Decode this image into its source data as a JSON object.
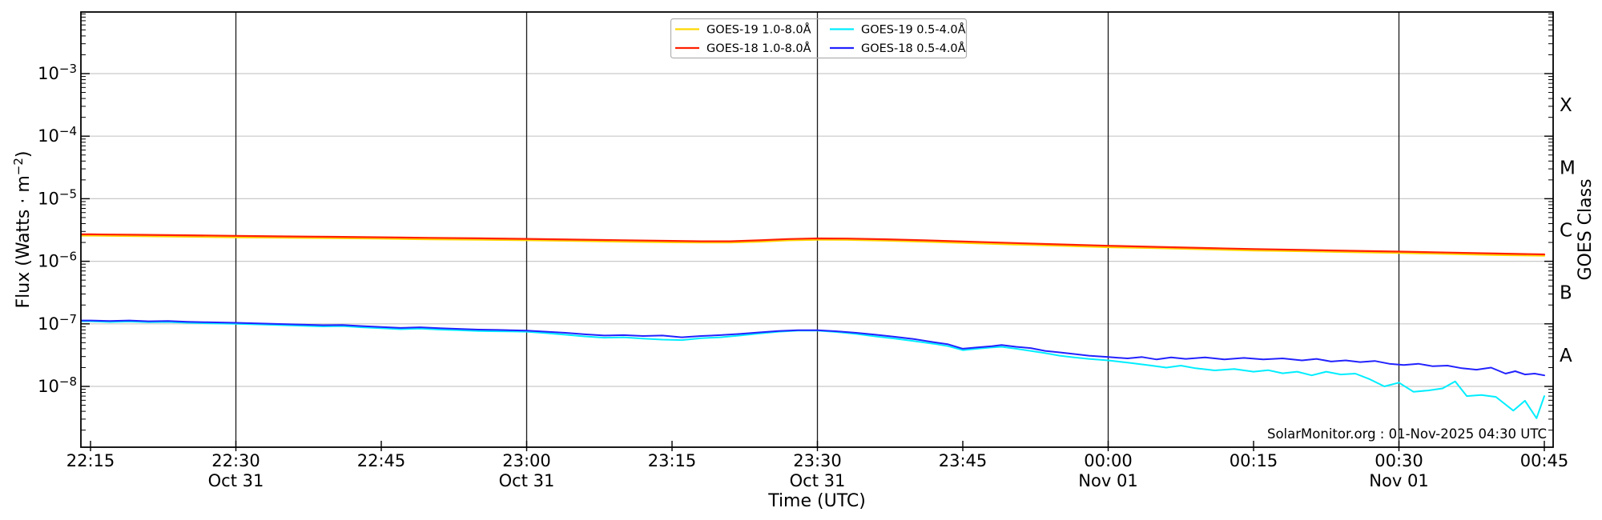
{
  "chart_data": {
    "type": "line",
    "title": "",
    "xlabel": "Time (UTC)",
    "ylabel_parts": {
      "pre": "Flux (Watts · m",
      "sup": "−2",
      "post": ")"
    },
    "y2label": "GOES Class",
    "x_axis": {
      "start_label": "22:15",
      "end_label": "00:45",
      "tick_interval_minutes": 15,
      "ticks": [
        {
          "m": 0,
          "label": "22:15",
          "date": null
        },
        {
          "m": 15,
          "label": "22:30",
          "date": "Oct 31"
        },
        {
          "m": 30,
          "label": "22:45",
          "date": null
        },
        {
          "m": 45,
          "label": "23:00",
          "date": "Oct 31"
        },
        {
          "m": 60,
          "label": "23:15",
          "date": null
        },
        {
          "m": 75,
          "label": "23:30",
          "date": "Oct 31"
        },
        {
          "m": 90,
          "label": "23:45",
          "date": null
        },
        {
          "m": 105,
          "label": "00:00",
          "date": "Nov 01"
        },
        {
          "m": 120,
          "label": "00:15",
          "date": null
        },
        {
          "m": 135,
          "label": "00:30",
          "date": "Nov 01"
        },
        {
          "m": 150,
          "label": "00:45",
          "date": null
        }
      ]
    },
    "y_axis": {
      "scale": "log",
      "range_exponents": [
        -2,
        -9
      ],
      "ticks": [
        {
          "base": "10",
          "sup": "−3",
          "exp": -3
        },
        {
          "base": "10",
          "sup": "−4",
          "exp": -4
        },
        {
          "base": "10",
          "sup": "−5",
          "exp": -5
        },
        {
          "base": "10",
          "sup": "−6",
          "exp": -6
        },
        {
          "base": "10",
          "sup": "−7",
          "exp": -7
        },
        {
          "base": "10",
          "sup": "−8",
          "exp": -8
        }
      ]
    },
    "goes_classes": [
      {
        "label": "X",
        "mid_exp": -3.5
      },
      {
        "label": "M",
        "mid_exp": -4.5
      },
      {
        "label": "C",
        "mid_exp": -5.5
      },
      {
        "label": "B",
        "mid_exp": -6.5
      },
      {
        "label": "A",
        "mid_exp": -7.5
      }
    ],
    "grid": {
      "h_color": "#c9c9c9",
      "v_color": "#1b1b1b",
      "axis_color": "#000000"
    },
    "legend": {
      "position": "top-center",
      "border_color": "#b0b0b0",
      "columns": 2
    },
    "attribution": "SolarMonitor.org : 01-Nov-2025 04:30 UTC",
    "series": [
      {
        "name": "GOES-19 1.0-8.0Å",
        "color": "#ffd700",
        "width": 2.2,
        "points": [
          [
            0,
            2.57e-06
          ],
          [
            5,
            2.52e-06
          ],
          [
            10,
            2.47e-06
          ],
          [
            15,
            2.42e-06
          ],
          [
            20,
            2.38e-06
          ],
          [
            25,
            2.34e-06
          ],
          [
            30,
            2.3e-06
          ],
          [
            35,
            2.25e-06
          ],
          [
            40,
            2.21e-06
          ],
          [
            45,
            2.17e-06
          ],
          [
            50,
            2.11e-06
          ],
          [
            55,
            2.06e-06
          ],
          [
            60,
            2.01e-06
          ],
          [
            63,
            1.99e-06
          ],
          [
            66,
            1.99e-06
          ],
          [
            69,
            2.05e-06
          ],
          [
            72,
            2.16e-06
          ],
          [
            75,
            2.21e-06
          ],
          [
            78,
            2.2e-06
          ],
          [
            82,
            2.14e-06
          ],
          [
            86,
            2.05e-06
          ],
          [
            90,
            1.97e-06
          ],
          [
            95,
            1.86e-06
          ],
          [
            100,
            1.77e-06
          ],
          [
            105,
            1.68e-06
          ],
          [
            110,
            1.62e-06
          ],
          [
            115,
            1.55e-06
          ],
          [
            120,
            1.49e-06
          ],
          [
            125,
            1.45e-06
          ],
          [
            130,
            1.4e-06
          ],
          [
            135,
            1.36e-06
          ],
          [
            140,
            1.31e-06
          ],
          [
            145,
            1.26e-06
          ],
          [
            150,
            1.23e-06
          ]
        ]
      },
      {
        "name": "GOES-18 1.0-8.0Å",
        "color": "#ff2000",
        "width": 2.2,
        "points": [
          [
            0,
            2.7e-06
          ],
          [
            5,
            2.65e-06
          ],
          [
            10,
            2.6e-06
          ],
          [
            15,
            2.55e-06
          ],
          [
            20,
            2.5e-06
          ],
          [
            25,
            2.46e-06
          ],
          [
            30,
            2.42e-06
          ],
          [
            35,
            2.37e-06
          ],
          [
            40,
            2.33e-06
          ],
          [
            45,
            2.28e-06
          ],
          [
            50,
            2.22e-06
          ],
          [
            55,
            2.17e-06
          ],
          [
            60,
            2.12e-06
          ],
          [
            63,
            2.09e-06
          ],
          [
            66,
            2.09e-06
          ],
          [
            69,
            2.16e-06
          ],
          [
            72,
            2.27e-06
          ],
          [
            75,
            2.32e-06
          ],
          [
            78,
            2.31e-06
          ],
          [
            82,
            2.25e-06
          ],
          [
            86,
            2.16e-06
          ],
          [
            90,
            2.07e-06
          ],
          [
            95,
            1.96e-06
          ],
          [
            100,
            1.86e-06
          ],
          [
            105,
            1.77e-06
          ],
          [
            110,
            1.7e-06
          ],
          [
            115,
            1.63e-06
          ],
          [
            120,
            1.57e-06
          ],
          [
            125,
            1.52e-06
          ],
          [
            130,
            1.47e-06
          ],
          [
            135,
            1.43e-06
          ],
          [
            140,
            1.38e-06
          ],
          [
            145,
            1.33e-06
          ],
          [
            150,
            1.29e-06
          ]
        ]
      },
      {
        "name": "GOES-19 0.5-4.0Å",
        "color": "#00eeff",
        "width": 2.0,
        "points": [
          [
            0,
            1.1e-07
          ],
          [
            2,
            1.07e-07
          ],
          [
            4,
            1.09e-07
          ],
          [
            6,
            1.06e-07
          ],
          [
            8,
            1.07e-07
          ],
          [
            10,
            1.04e-07
          ],
          [
            12,
            1.02e-07
          ],
          [
            15,
            1e-07
          ],
          [
            18,
            9.7e-08
          ],
          [
            21,
            9.4e-08
          ],
          [
            24,
            9.1e-08
          ],
          [
            26,
            9.2e-08
          ],
          [
            28,
            8.8e-08
          ],
          [
            30,
            8.5e-08
          ],
          [
            32,
            8.2e-08
          ],
          [
            34,
            8.4e-08
          ],
          [
            36,
            8.1e-08
          ],
          [
            38,
            7.9e-08
          ],
          [
            40,
            7.7e-08
          ],
          [
            42,
            7.6e-08
          ],
          [
            45,
            7.5e-08
          ],
          [
            47,
            7.1e-08
          ],
          [
            49,
            6.7e-08
          ],
          [
            51,
            6.3e-08
          ],
          [
            53,
            6e-08
          ],
          [
            55,
            6.1e-08
          ],
          [
            57,
            5.8e-08
          ],
          [
            59,
            5.6e-08
          ],
          [
            61,
            5.5e-08
          ],
          [
            63,
            5.9e-08
          ],
          [
            65,
            6.1e-08
          ],
          [
            67,
            6.5e-08
          ],
          [
            69,
            7e-08
          ],
          [
            71,
            7.5e-08
          ],
          [
            73,
            7.8e-08
          ],
          [
            75,
            7.8e-08
          ],
          [
            77,
            7.4e-08
          ],
          [
            79,
            6.9e-08
          ],
          [
            81,
            6.3e-08
          ],
          [
            83,
            5.8e-08
          ],
          [
            85,
            5.3e-08
          ],
          [
            87,
            4.8e-08
          ],
          [
            88.5,
            4.4e-08
          ],
          [
            90,
            3.8e-08
          ],
          [
            91.5,
            4e-08
          ],
          [
            93,
            4.2e-08
          ],
          [
            94,
            4.3e-08
          ],
          [
            95.5,
            4e-08
          ],
          [
            97,
            3.7e-08
          ],
          [
            98.5,
            3.4e-08
          ],
          [
            100,
            3.1e-08
          ],
          [
            101.5,
            2.9e-08
          ],
          [
            103,
            2.75e-08
          ],
          [
            105,
            2.6e-08
          ],
          [
            107,
            2.4e-08
          ],
          [
            109,
            2.2e-08
          ],
          [
            111,
            2e-08
          ],
          [
            112.5,
            2.15e-08
          ],
          [
            114,
            1.95e-08
          ],
          [
            116,
            1.8e-08
          ],
          [
            118,
            1.9e-08
          ],
          [
            120,
            1.72e-08
          ],
          [
            121.5,
            1.82e-08
          ],
          [
            123,
            1.62e-08
          ],
          [
            124.5,
            1.72e-08
          ],
          [
            126,
            1.5e-08
          ],
          [
            127.5,
            1.72e-08
          ],
          [
            129,
            1.55e-08
          ],
          [
            130.5,
            1.6e-08
          ],
          [
            132,
            1.3e-08
          ],
          [
            133.5,
            1e-08
          ],
          [
            135,
            1.15e-08
          ],
          [
            136.5,
            8.2e-09
          ],
          [
            138,
            8.6e-09
          ],
          [
            139.5,
            9.3e-09
          ],
          [
            140.8,
            1.2e-08
          ],
          [
            142,
            7e-09
          ],
          [
            143.5,
            7.3e-09
          ],
          [
            145,
            6.8e-09
          ],
          [
            146.8,
            4.1e-09
          ],
          [
            148,
            5.9e-09
          ],
          [
            149.2,
            3.1e-09
          ],
          [
            150,
            7e-09
          ]
        ]
      },
      {
        "name": "GOES-18 0.5-4.0Å",
        "color": "#2222ff",
        "width": 2.0,
        "points": [
          [
            0,
            1.13e-07
          ],
          [
            2,
            1.11e-07
          ],
          [
            4,
            1.13e-07
          ],
          [
            6,
            1.1e-07
          ],
          [
            8,
            1.11e-07
          ],
          [
            10,
            1.08e-07
          ],
          [
            12,
            1.06e-07
          ],
          [
            15,
            1.04e-07
          ],
          [
            18,
            1.01e-07
          ],
          [
            21,
            9.8e-08
          ],
          [
            24,
            9.5e-08
          ],
          [
            26,
            9.6e-08
          ],
          [
            28,
            9.2e-08
          ],
          [
            30,
            8.9e-08
          ],
          [
            32,
            8.6e-08
          ],
          [
            34,
            8.8e-08
          ],
          [
            36,
            8.5e-08
          ],
          [
            38,
            8.3e-08
          ],
          [
            40,
            8.1e-08
          ],
          [
            42,
            8e-08
          ],
          [
            45,
            7.8e-08
          ],
          [
            47,
            7.5e-08
          ],
          [
            49,
            7.2e-08
          ],
          [
            51,
            6.8e-08
          ],
          [
            53,
            6.5e-08
          ],
          [
            55,
            6.6e-08
          ],
          [
            57,
            6.4e-08
          ],
          [
            59,
            6.5e-08
          ],
          [
            61,
            6.1e-08
          ],
          [
            63,
            6.4e-08
          ],
          [
            65,
            6.6e-08
          ],
          [
            67,
            6.9e-08
          ],
          [
            69,
            7.3e-08
          ],
          [
            71,
            7.7e-08
          ],
          [
            73,
            7.9e-08
          ],
          [
            75,
            7.9e-08
          ],
          [
            77,
            7.6e-08
          ],
          [
            79,
            7.2e-08
          ],
          [
            81,
            6.7e-08
          ],
          [
            83,
            6.2e-08
          ],
          [
            85,
            5.7e-08
          ],
          [
            87,
            5.1e-08
          ],
          [
            88.5,
            4.7e-08
          ],
          [
            90,
            4e-08
          ],
          [
            91.5,
            4.2e-08
          ],
          [
            93,
            4.4e-08
          ],
          [
            94,
            4.6e-08
          ],
          [
            95.5,
            4.3e-08
          ],
          [
            97,
            4.1e-08
          ],
          [
            98.5,
            3.7e-08
          ],
          [
            100,
            3.5e-08
          ],
          [
            101.5,
            3.3e-08
          ],
          [
            103,
            3.1e-08
          ],
          [
            105,
            2.95e-08
          ],
          [
            107,
            2.8e-08
          ],
          [
            108.5,
            2.95e-08
          ],
          [
            110,
            2.7e-08
          ],
          [
            111.5,
            2.9e-08
          ],
          [
            113,
            2.75e-08
          ],
          [
            115,
            2.9e-08
          ],
          [
            117,
            2.7e-08
          ],
          [
            119,
            2.85e-08
          ],
          [
            121,
            2.7e-08
          ],
          [
            123,
            2.8e-08
          ],
          [
            125,
            2.6e-08
          ],
          [
            126.5,
            2.75e-08
          ],
          [
            128,
            2.5e-08
          ],
          [
            129.5,
            2.6e-08
          ],
          [
            131,
            2.45e-08
          ],
          [
            132.5,
            2.55e-08
          ],
          [
            134,
            2.3e-08
          ],
          [
            135.5,
            2.2e-08
          ],
          [
            137,
            2.3e-08
          ],
          [
            138.5,
            2.1e-08
          ],
          [
            140,
            2.15e-08
          ],
          [
            141.5,
            1.95e-08
          ],
          [
            143,
            1.85e-08
          ],
          [
            144.5,
            2e-08
          ],
          [
            146,
            1.6e-08
          ],
          [
            147,
            1.75e-08
          ],
          [
            148,
            1.55e-08
          ],
          [
            149,
            1.6e-08
          ],
          [
            150,
            1.5e-08
          ]
        ]
      }
    ]
  }
}
